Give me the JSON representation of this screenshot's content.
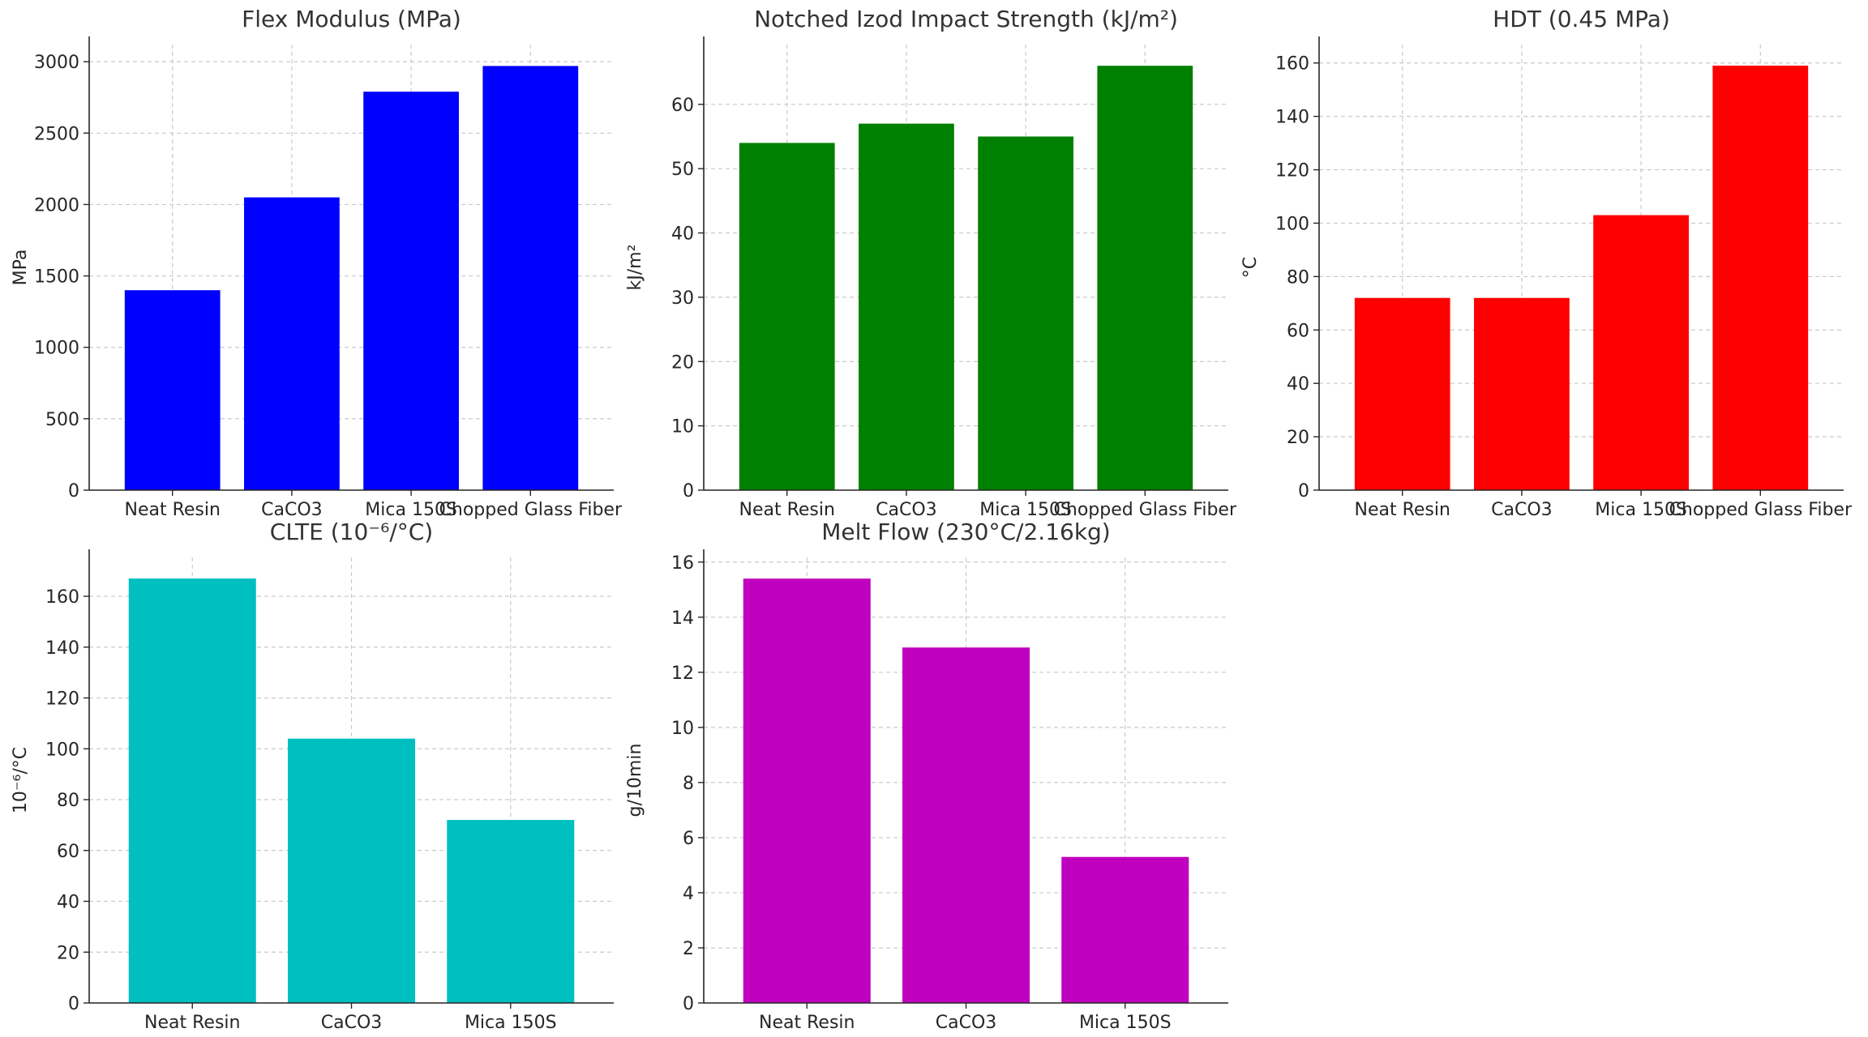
{
  "chart_data": [
    {
      "type": "bar",
      "title": "Flex Modulus (MPa)",
      "xlabel": "",
      "ylabel": "MPa",
      "categories": [
        "Neat Resin",
        "CaCO3",
        "Mica 150S",
        "Chopped Glass Fiber"
      ],
      "values": [
        1400,
        2050,
        2790,
        2970
      ],
      "ylim": [
        0,
        3120
      ],
      "yticks": [
        0,
        500,
        1000,
        1500,
        2000,
        2500,
        3000
      ],
      "color": "#0000ff",
      "grid": true
    },
    {
      "type": "bar",
      "title": "Notched Izod Impact Strength (kJ/m²)",
      "xlabel": "",
      "ylabel": "kJ/m²",
      "categories": [
        "Neat Resin",
        "CaCO3",
        "Mica 150S",
        "Chopped Glass Fiber"
      ],
      "values": [
        54,
        57,
        55,
        66
      ],
      "ylim": [
        0,
        69.3
      ],
      "yticks": [
        0,
        10,
        20,
        30,
        40,
        50,
        60
      ],
      "color": "#008000",
      "grid": true
    },
    {
      "type": "bar",
      "title": "HDT (0.45 MPa)",
      "xlabel": "",
      "ylabel": "°C",
      "categories": [
        "Neat Resin",
        "CaCO3",
        "Mica 150S",
        "Chopped Glass Fiber"
      ],
      "values": [
        72,
        72,
        103,
        159
      ],
      "ylim": [
        0,
        166.9
      ],
      "yticks": [
        0,
        20,
        40,
        60,
        80,
        100,
        120,
        140,
        160
      ],
      "color": "#ff0000",
      "grid": true
    },
    {
      "type": "bar",
      "title": "CLTE (10⁻⁶/°C)",
      "xlabel": "",
      "ylabel": "10⁻⁶/°C",
      "categories": [
        "Neat Resin",
        "CaCO3",
        "Mica 150S"
      ],
      "values": [
        167,
        104,
        72
      ],
      "ylim": [
        0,
        175.3
      ],
      "yticks": [
        0,
        20,
        40,
        60,
        80,
        100,
        120,
        140,
        160
      ],
      "color": "#00bfbf",
      "grid": true
    },
    {
      "type": "bar",
      "title": "Melt Flow (230°C/2.16kg)",
      "xlabel": "",
      "ylabel": "g/10min",
      "categories": [
        "Neat Resin",
        "CaCO3",
        "Mica 150S"
      ],
      "values": [
        15.4,
        12.9,
        5.3
      ],
      "ylim": [
        0,
        16.17
      ],
      "yticks": [
        0,
        2,
        4,
        6,
        8,
        10,
        12,
        14,
        16
      ],
      "color": "#bf00bf",
      "grid": true
    }
  ]
}
